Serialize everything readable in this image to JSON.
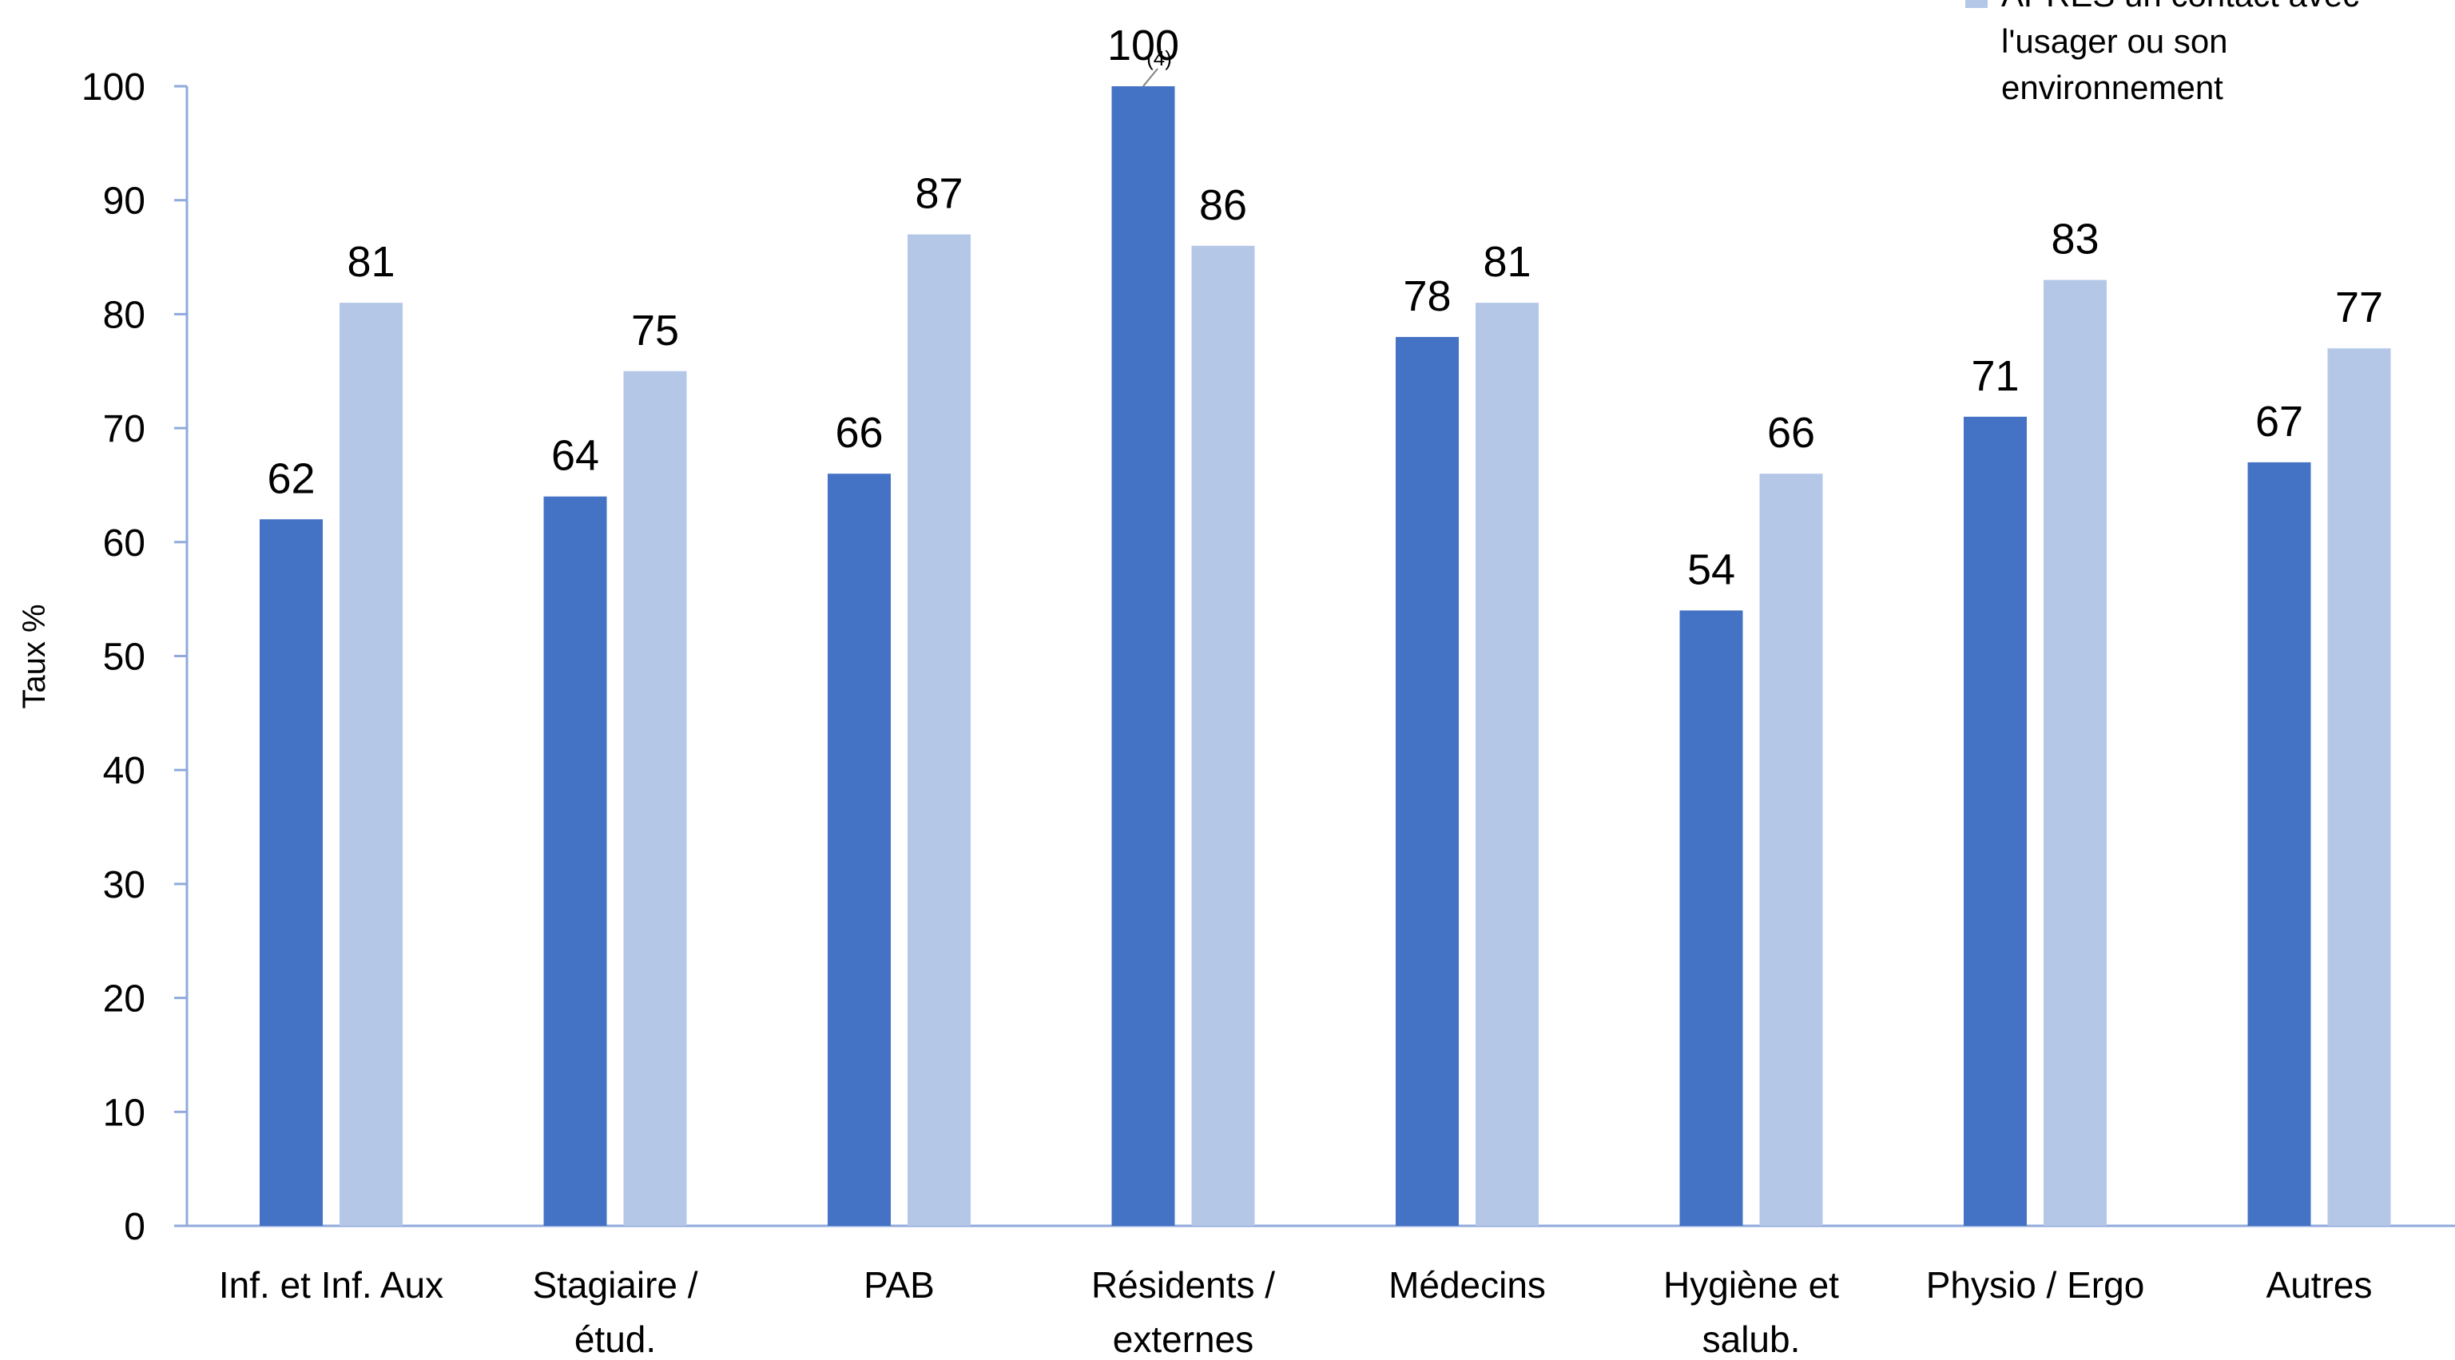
{
  "chart_data": {
    "type": "bar",
    "title": "",
    "xlabel": "",
    "ylabel": "Taux %",
    "ylim": [
      0,
      100
    ],
    "yticks": [
      0,
      10,
      20,
      30,
      40,
      50,
      60,
      70,
      80,
      90,
      100
    ],
    "grid": false,
    "legend_position": "top-right",
    "categories": [
      [
        "Inf. et Inf. Aux"
      ],
      [
        "Stagiaire /",
        "étud."
      ],
      [
        "PAB"
      ],
      [
        "Résidents /",
        "externes"
      ],
      [
        "Médecins"
      ],
      [
        "Hygiène et",
        "salub."
      ],
      [
        "Physio / Ergo"
      ],
      [
        "Autres"
      ]
    ],
    "series": [
      {
        "color": "#4472C4",
        "values": [
          62,
          64,
          66,
          100,
          78,
          54,
          71,
          67
        ],
        "value_labels": [
          "62",
          "64",
          "66",
          "100",
          "78",
          "54",
          "71",
          "67"
        ]
      },
      {
        "name_lines": [
          "APRÈS un contact avec",
          "l'usager ou son",
          "environnement"
        ],
        "color": "#B4C7E7",
        "values": [
          81,
          75,
          87,
          86,
          81,
          66,
          83,
          77
        ],
        "value_labels": [
          "81",
          "75",
          "87",
          "86",
          "81",
          "66",
          "83",
          "77"
        ]
      }
    ],
    "annotations": [
      {
        "series": 0,
        "category": 3,
        "text": "(4)"
      }
    ],
    "axis_color": "#8FAADC"
  }
}
